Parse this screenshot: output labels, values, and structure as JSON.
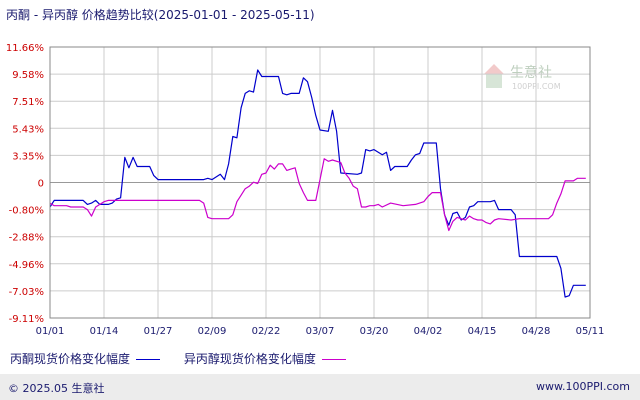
{
  "title": "丙酮 - 异丙醇 价格趋势比较(2025-01-01 - 2025-05-11)",
  "watermark": {
    "brand": "生意社",
    "url": "100PPI.COM"
  },
  "footer": {
    "copyright": "© 2025.05 生意社",
    "site": "www.100PPI.com"
  },
  "colors": {
    "series1": "#0000cc",
    "series2": "#cc00cc",
    "grid": "#cccccc",
    "axis_text": "#cc0000"
  },
  "chart_data": {
    "type": "line",
    "y_ticks": [
      "11.66%",
      "9.58%",
      "7.51%",
      "5.43%",
      "3.35%",
      "0",
      "-0.80%",
      "-2.88%",
      "-4.96%",
      "-7.03%",
      "-9.11%"
    ],
    "x_ticks": [
      "01/01",
      "01/14",
      "01/27",
      "02/09",
      "02/22",
      "03/07",
      "03/20",
      "04/02",
      "04/15",
      "04/28",
      "05/11"
    ],
    "ylim": [
      -9.11,
      11.66
    ],
    "xlim": [
      0,
      130
    ],
    "series": [
      {
        "name": "丙酮现货价格变化幅度",
        "points": [
          [
            0,
            -0.6
          ],
          [
            1,
            -0.1
          ],
          [
            8,
            -0.1
          ],
          [
            9,
            -0.4
          ],
          [
            10,
            -0.3
          ],
          [
            11,
            -0.1
          ],
          [
            12,
            -0.4
          ],
          [
            14,
            -0.4
          ],
          [
            15,
            -0.3
          ],
          [
            16,
            0
          ],
          [
            17,
            0.1
          ],
          [
            18,
            3.2
          ],
          [
            19,
            2.4
          ],
          [
            20,
            3.2
          ],
          [
            21,
            2.5
          ],
          [
            24,
            2.5
          ],
          [
            25,
            1.8
          ],
          [
            26,
            1.5
          ],
          [
            37,
            1.5
          ],
          [
            38,
            1.6
          ],
          [
            39,
            1.5
          ],
          [
            41,
            1.9
          ],
          [
            42,
            1.5
          ],
          [
            43,
            2.7
          ],
          [
            44,
            4.8
          ],
          [
            45,
            4.7
          ],
          [
            46,
            7.0
          ],
          [
            47,
            8.1
          ],
          [
            48,
            8.3
          ],
          [
            49,
            8.2
          ],
          [
            50,
            9.9
          ],
          [
            51,
            9.4
          ],
          [
            52,
            9.4
          ],
          [
            55,
            9.4
          ],
          [
            56,
            8.1
          ],
          [
            57,
            8.0
          ],
          [
            58,
            8.1
          ],
          [
            60,
            8.1
          ],
          [
            61,
            9.3
          ],
          [
            62,
            9.0
          ],
          [
            63,
            7.8
          ],
          [
            64,
            6.4
          ],
          [
            65,
            5.3
          ],
          [
            67,
            5.2
          ],
          [
            68,
            6.8
          ],
          [
            69,
            5.2
          ],
          [
            70,
            2.0
          ],
          [
            74,
            1.9
          ],
          [
            75,
            2.0
          ],
          [
            76,
            3.8
          ],
          [
            77,
            3.7
          ],
          [
            78,
            3.8
          ],
          [
            80,
            3.4
          ],
          [
            81,
            3.6
          ],
          [
            82,
            2.2
          ],
          [
            83,
            2.5
          ],
          [
            86,
            2.5
          ],
          [
            87,
            3.0
          ],
          [
            88,
            3.4
          ],
          [
            89,
            3.5
          ],
          [
            90,
            4.3
          ],
          [
            92,
            4.3
          ],
          [
            93,
            4.3
          ],
          [
            94,
            0.8
          ],
          [
            95,
            -1.2
          ],
          [
            96,
            -2.0
          ],
          [
            97,
            -1.1
          ],
          [
            98,
            -1.0
          ],
          [
            99,
            -1.6
          ],
          [
            100,
            -1.4
          ],
          [
            101,
            -0.6
          ],
          [
            102,
            -0.5
          ],
          [
            103,
            -0.2
          ],
          [
            106,
            -0.2
          ],
          [
            107,
            -0.1
          ],
          [
            108,
            -0.8
          ],
          [
            111,
            -0.8
          ],
          [
            112,
            -1.2
          ],
          [
            113,
            -4.4
          ],
          [
            122,
            -4.4
          ],
          [
            123,
            -5.3
          ],
          [
            124,
            -7.5
          ],
          [
            125,
            -7.4
          ],
          [
            126,
            -6.6
          ],
          [
            129,
            -6.6
          ]
        ]
      },
      {
        "name": "异丙醇现货价格变化幅度",
        "points": [
          [
            0,
            -0.3
          ],
          [
            1,
            -0.5
          ],
          [
            4,
            -0.5
          ],
          [
            5,
            -0.6
          ],
          [
            8,
            -0.6
          ],
          [
            9,
            -0.8
          ],
          [
            10,
            -1.3
          ],
          [
            11,
            -0.6
          ],
          [
            12,
            -0.4
          ],
          [
            13,
            -0.2
          ],
          [
            14,
            -0.1
          ],
          [
            15,
            -0.1
          ],
          [
            16,
            -0.1
          ],
          [
            36,
            -0.1
          ],
          [
            37,
            -0.3
          ],
          [
            38,
            -1.4
          ],
          [
            39,
            -1.5
          ],
          [
            43,
            -1.5
          ],
          [
            44,
            -1.2
          ],
          [
            45,
            -0.2
          ],
          [
            46,
            0.3
          ],
          [
            47,
            0.8
          ],
          [
            48,
            1.0
          ],
          [
            49,
            1.3
          ],
          [
            50,
            1.2
          ],
          [
            51,
            1.9
          ],
          [
            52,
            2.0
          ],
          [
            53,
            2.6
          ],
          [
            54,
            2.3
          ],
          [
            55,
            2.7
          ],
          [
            56,
            2.7
          ],
          [
            57,
            2.2
          ],
          [
            58,
            2.3
          ],
          [
            59,
            2.4
          ],
          [
            60,
            1.2
          ],
          [
            61,
            0.5
          ],
          [
            62,
            -0.1
          ],
          [
            64,
            -0.1
          ],
          [
            65,
            1.5
          ],
          [
            66,
            3.1
          ],
          [
            67,
            2.9
          ],
          [
            68,
            3.0
          ],
          [
            70,
            2.8
          ],
          [
            71,
            2.0
          ],
          [
            72,
            1.6
          ],
          [
            73,
            1.0
          ],
          [
            74,
            0.8
          ],
          [
            75,
            -0.6
          ],
          [
            76,
            -0.6
          ],
          [
            77,
            -0.5
          ],
          [
            78,
            -0.5
          ],
          [
            79,
            -0.4
          ],
          [
            80,
            -0.6
          ],
          [
            82,
            -0.3
          ],
          [
            85,
            -0.5
          ],
          [
            88,
            -0.4
          ],
          [
            90,
            -0.2
          ],
          [
            91,
            0.2
          ],
          [
            92,
            0.5
          ],
          [
            94,
            0.5
          ],
          [
            95,
            -1.2
          ],
          [
            96,
            -2.4
          ],
          [
            97,
            -1.7
          ],
          [
            98,
            -1.4
          ],
          [
            100,
            -1.6
          ],
          [
            101,
            -1.3
          ],
          [
            102,
            -1.5
          ],
          [
            103,
            -1.6
          ],
          [
            104,
            -1.6
          ],
          [
            105,
            -1.8
          ],
          [
            106,
            -1.9
          ],
          [
            107,
            -1.6
          ],
          [
            108,
            -1.5
          ],
          [
            111,
            -1.6
          ],
          [
            113,
            -1.5
          ],
          [
            114,
            -1.5
          ],
          [
            120,
            -1.5
          ],
          [
            121,
            -1.2
          ],
          [
            122,
            -0.3
          ],
          [
            123,
            0.4
          ],
          [
            124,
            1.4
          ],
          [
            125,
            1.4
          ],
          [
            126,
            1.4
          ],
          [
            127,
            1.6
          ],
          [
            129,
            1.6
          ]
        ]
      }
    ]
  }
}
